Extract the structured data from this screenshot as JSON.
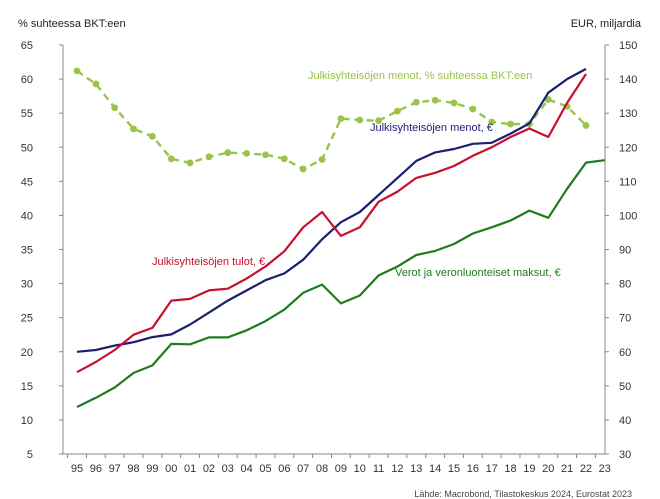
{
  "chart_data": {
    "type": "line",
    "title": "",
    "y_left_label": "% suhteessa BKT:een",
    "y_right_label": "EUR, miljardia",
    "x": [
      "95",
      "96",
      "97",
      "98",
      "99",
      "00",
      "01",
      "02",
      "03",
      "04",
      "05",
      "06",
      "07",
      "08",
      "09",
      "10",
      "11",
      "12",
      "13",
      "14",
      "15",
      "16",
      "17",
      "18",
      "19",
      "20",
      "21",
      "22",
      "23"
    ],
    "ylim_left": [
      5,
      65
    ],
    "ylim_right": [
      30,
      150
    ],
    "yticks_left": [
      5,
      10,
      15,
      20,
      25,
      30,
      35,
      40,
      45,
      50,
      55,
      60,
      65
    ],
    "yticks_right": [
      30,
      40,
      50,
      60,
      70,
      80,
      90,
      100,
      110,
      120,
      130,
      140,
      150
    ],
    "grid": false,
    "source": "Lähde: Macrobond, Tilastokeskus 2024, Eurostat 2023",
    "series": [
      {
        "name": "Julkisyhteisöjen menot, % suhteessa BKT:een",
        "axis": "left",
        "style": "dashed-markers",
        "color": "#9bc34a",
        "values": [
          61.2,
          59.3,
          55.8,
          52.7,
          51.6,
          48.3,
          47.7,
          48.6,
          49.2,
          49.1,
          48.9,
          48.3,
          46.8,
          48.2,
          54.2,
          54.0,
          53.9,
          55.3,
          56.6,
          56.9,
          56.5,
          55.6,
          53.7,
          53.4,
          53.4,
          57.0,
          56.0,
          53.2,
          null
        ]
      },
      {
        "name": "Julkisyhteisöjen menot, €",
        "axis": "right",
        "style": "solid",
        "color": "#1a1f6e",
        "values": [
          60.0,
          60.5,
          61.8,
          62.8,
          64.3,
          65.1,
          68.0,
          71.5,
          75.0,
          78.0,
          81.0,
          83.0,
          87.0,
          93.0,
          98.0,
          101.0,
          106.0,
          111.0,
          116.0,
          118.5,
          119.5,
          121.0,
          121.3,
          124.0,
          127.0,
          136.0,
          140.0,
          143.0,
          null
        ]
      },
      {
        "name": "Julkisyhteisöjen tulot, €",
        "axis": "right",
        "style": "solid",
        "color": "#c8102e",
        "values": [
          54.0,
          57.0,
          60.5,
          65.0,
          67.0,
          75.0,
          75.5,
          78.0,
          78.5,
          81.5,
          85.0,
          89.5,
          96.5,
          101.0,
          94.0,
          96.5,
          104.0,
          107.0,
          111.0,
          112.5,
          114.5,
          117.5,
          120.0,
          123.0,
          125.5,
          123.0,
          133.0,
          141.5,
          null
        ]
      },
      {
        "name": "Verot ja veronluonteiset maksut, €",
        "axis": "right",
        "style": "solid",
        "color": "#1e7b1e",
        "values": [
          43.8,
          46.5,
          49.5,
          53.8,
          56.0,
          62.3,
          62.2,
          64.2,
          64.2,
          66.3,
          69.0,
          72.4,
          77.3,
          79.7,
          74.2,
          76.5,
          82.4,
          85.0,
          88.4,
          89.6,
          91.6,
          94.7,
          96.5,
          98.5,
          101.4,
          99.3,
          107.8,
          115.5,
          116.2
        ]
      }
    ],
    "annotations": [
      {
        "text": "Julkisyhteisöjen menot, % suhteessa BKT:een",
        "series": 0
      },
      {
        "text": "Julkisyhteisöjen menot, €",
        "series": 1
      },
      {
        "text": "Julkisyhteisöjen tulot, €",
        "series": 2
      },
      {
        "text": "Verot ja veronluonteiset maksut, €",
        "series": 3
      }
    ]
  }
}
